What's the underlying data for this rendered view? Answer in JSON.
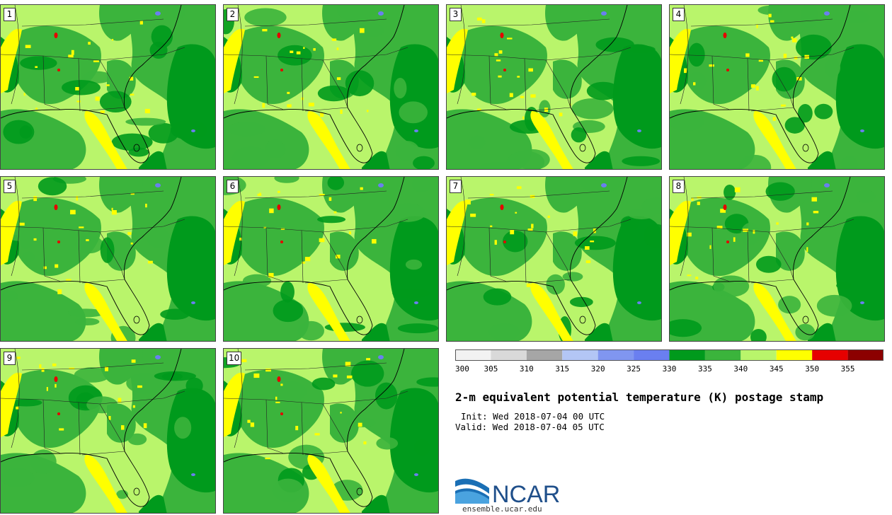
{
  "panels": [
    {
      "label": "1",
      "seed": 11
    },
    {
      "label": "2",
      "seed": 23
    },
    {
      "label": "3",
      "seed": 37
    },
    {
      "label": "4",
      "seed": 41
    },
    {
      "label": "5",
      "seed": 53
    },
    {
      "label": "6",
      "seed": 67
    },
    {
      "label": "7",
      "seed": 71
    },
    {
      "label": "8",
      "seed": 83
    },
    {
      "label": "9",
      "seed": 97
    },
    {
      "label": "10",
      "seed": 103
    }
  ],
  "colorbar": {
    "bins": [
      {
        "from": 300,
        "to": 305,
        "color": "#f2f2f2"
      },
      {
        "from": 305,
        "to": 310,
        "color": "#d9d9d9"
      },
      {
        "from": 310,
        "to": 315,
        "color": "#a6a6a6"
      },
      {
        "from": 315,
        "to": 320,
        "color": "#b3c6f5"
      },
      {
        "from": 320,
        "to": 325,
        "color": "#8096f0"
      },
      {
        "from": 325,
        "to": 330,
        "color": "#6a7ff0"
      },
      {
        "from": 330,
        "to": 335,
        "color": "#009a1c"
      },
      {
        "from": 335,
        "to": 340,
        "color": "#3bb43c"
      },
      {
        "from": 340,
        "to": 345,
        "color": "#b9f56b"
      },
      {
        "from": 345,
        "to": 350,
        "color": "#ffff00"
      },
      {
        "from": 350,
        "to": 355,
        "color": "#e60000"
      },
      {
        "from": 355,
        "to": 360,
        "color": "#8c0000"
      }
    ],
    "tick_labels": [
      "300",
      "305",
      "310",
      "315",
      "320",
      "325",
      "330",
      "335",
      "340",
      "345",
      "350",
      "355"
    ]
  },
  "title": "2-m equivalent potential temperature (K) postage stamp",
  "init": "Init: Wed 2018-07-04 00 UTC",
  "valid": "Valid: Wed 2018-07-04 05 UTC",
  "logo_text": "NCAR",
  "site": "ensemble.ucar.edu"
}
